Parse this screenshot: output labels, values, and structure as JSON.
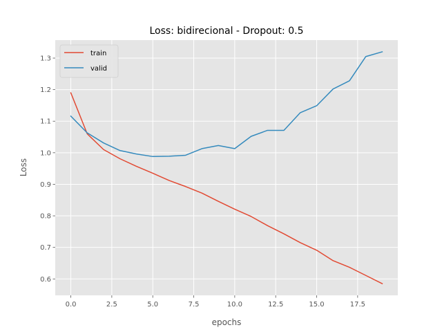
{
  "chart_data": {
    "type": "line",
    "title": "Loss: bidirecional - Dropout: 0.5",
    "xlabel": "epochs",
    "ylabel": "Loss",
    "xlim": [
      -0.95,
      19.95
    ],
    "ylim": [
      0.548,
      1.357
    ],
    "xticks": [
      0.0,
      2.5,
      5.0,
      7.5,
      10.0,
      12.5,
      15.0,
      17.5
    ],
    "xtick_labels": [
      "0.0",
      "2.5",
      "5.0",
      "7.5",
      "10.0",
      "12.5",
      "15.0",
      "17.5"
    ],
    "yticks": [
      0.6,
      0.7,
      0.8,
      0.9,
      1.0,
      1.1,
      1.2,
      1.3
    ],
    "ytick_labels": [
      "0.6",
      "0.7",
      "0.8",
      "0.9",
      "1.0",
      "1.1",
      "1.2",
      "1.3"
    ],
    "grid": true,
    "legend_position": "top-left",
    "x": [
      0,
      1,
      2,
      3,
      4,
      5,
      6,
      7,
      8,
      9,
      10,
      11,
      12,
      13,
      14,
      15,
      16,
      17,
      18,
      19
    ],
    "series": [
      {
        "name": "train",
        "color": "#E24A33",
        "values": [
          1.19,
          1.06,
          1.01,
          0.981,
          0.957,
          0.935,
          0.912,
          0.893,
          0.872,
          0.846,
          0.821,
          0.798,
          0.769,
          0.743,
          0.715,
          0.691,
          0.658,
          0.637,
          0.611,
          0.585
        ]
      },
      {
        "name": "valid",
        "color": "#348ABD",
        "values": [
          1.116,
          1.063,
          1.031,
          1.007,
          0.996,
          0.988,
          0.989,
          0.992,
          1.013,
          1.023,
          1.013,
          1.052,
          1.071,
          1.071,
          1.127,
          1.149,
          1.202,
          1.228,
          1.305,
          1.32
        ]
      }
    ]
  }
}
